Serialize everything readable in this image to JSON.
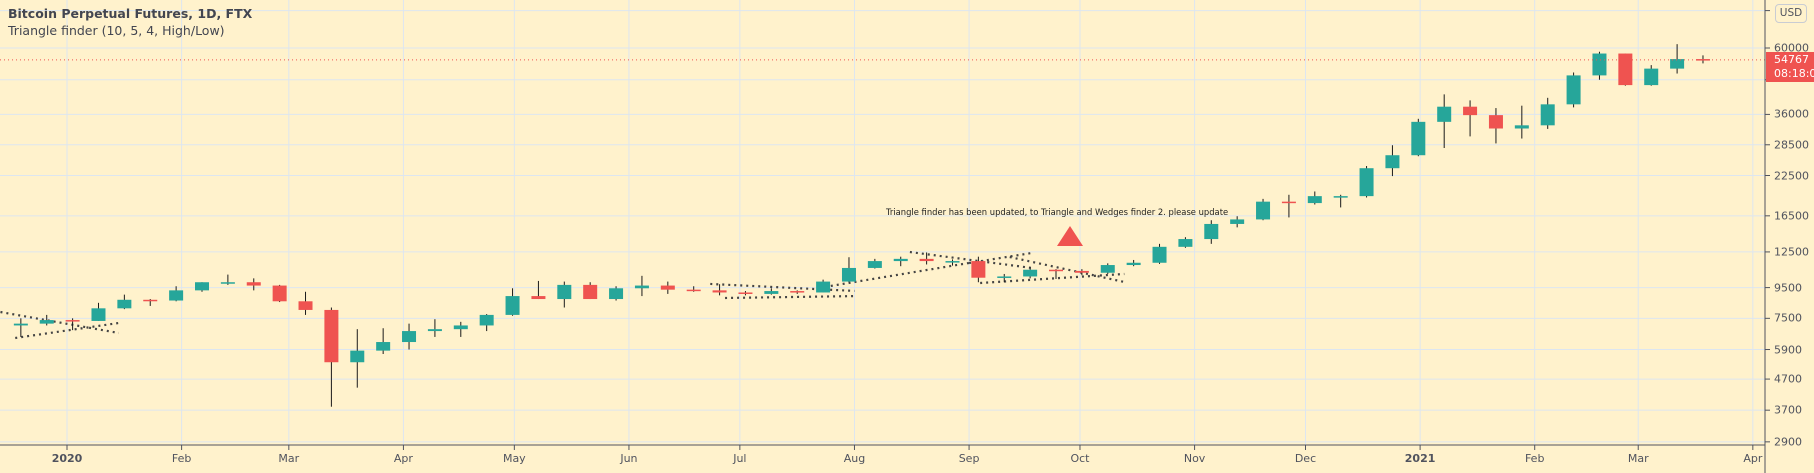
{
  "header": {
    "symbol_title": "Bitcoin Perpetual Futures, 1D, FTX",
    "indicator_title": "Triangle finder (10, 5, 4, High/Low)"
  },
  "currency_button": "USD",
  "last_price": {
    "value": "54767",
    "countdown": "08:18:05",
    "color": "#ef5350"
  },
  "annotation": {
    "text": "Triangle finder has been updated, to Triangle and Wedges finder 2. please update",
    "marker": "up-triangle",
    "marker_color": "#ef5350"
  },
  "colors": {
    "background": "#fff2cc",
    "up": "#26a69a",
    "down": "#ef5350",
    "grid": "#dde6f0",
    "pattern_line": "#444444"
  },
  "chart_data": {
    "type": "candlestick",
    "scale": "log",
    "grid": true,
    "ylim": [
      2900,
      80000
    ],
    "y_ticks": [
      "60000",
      "36000",
      "28500",
      "22500",
      "16500",
      "12500",
      "9500",
      "7500",
      "5900",
      "4700",
      "3700",
      "2900"
    ],
    "x_ticks": [
      {
        "label": "2020",
        "date": "2020-01-01",
        "bold": true
      },
      {
        "label": "Feb",
        "date": "2020-02-01"
      },
      {
        "label": "Mar",
        "date": "2020-03-01"
      },
      {
        "label": "Apr",
        "date": "2020-04-01"
      },
      {
        "label": "May",
        "date": "2020-05-01"
      },
      {
        "label": "Jun",
        "date": "2020-06-01"
      },
      {
        "label": "Jul",
        "date": "2020-07-01"
      },
      {
        "label": "Aug",
        "date": "2020-08-01"
      },
      {
        "label": "Sep",
        "date": "2020-09-01"
      },
      {
        "label": "Oct",
        "date": "2020-10-01"
      },
      {
        "label": "Nov",
        "date": "2020-11-01"
      },
      {
        "label": "Dec",
        "date": "2020-12-01"
      },
      {
        "label": "2021",
        "date": "2021-01-01",
        "bold": true
      },
      {
        "label": "Feb",
        "date": "2021-02-01"
      },
      {
        "label": "Mar",
        "date": "2021-03-01"
      },
      {
        "label": "Apr",
        "date": "2021-04-01"
      }
    ],
    "candles": [
      [
        "2019-12-16",
        7100,
        7500,
        6500,
        7200
      ],
      [
        "2019-12-23",
        7200,
        7700,
        7100,
        7400
      ],
      [
        "2019-12-30",
        7400,
        7500,
        6850,
        7350
      ],
      [
        "2020-01-06",
        7350,
        8450,
        7350,
        8100
      ],
      [
        "2020-01-13",
        8100,
        9000,
        8050,
        8650
      ],
      [
        "2020-01-20",
        8650,
        8700,
        8250,
        8600
      ],
      [
        "2020-01-27",
        8600,
        9600,
        8550,
        9300
      ],
      [
        "2020-02-03",
        9300,
        9900,
        9200,
        9900
      ],
      [
        "2020-02-10",
        9900,
        10500,
        9700,
        9900
      ],
      [
        "2020-02-17",
        9900,
        10200,
        9300,
        9650
      ],
      [
        "2020-02-24",
        9650,
        9700,
        8500,
        8550
      ],
      [
        "2020-03-02",
        8550,
        9200,
        7700,
        8000
      ],
      [
        "2020-03-09",
        8000,
        8150,
        3800,
        5350
      ],
      [
        "2020-03-16",
        5350,
        6900,
        4400,
        5850
      ],
      [
        "2020-03-23",
        5850,
        6950,
        5700,
        6250
      ],
      [
        "2020-03-30",
        6250,
        7200,
        5900,
        6800
      ],
      [
        "2020-04-06",
        6800,
        7450,
        6500,
        6900
      ],
      [
        "2020-04-13",
        6900,
        7300,
        6500,
        7100
      ],
      [
        "2020-04-20",
        7100,
        7750,
        6800,
        7700
      ],
      [
        "2020-04-27",
        7700,
        9450,
        7650,
        8900
      ],
      [
        "2020-05-04",
        8900,
        10000,
        8700,
        8700
      ],
      [
        "2020-05-11",
        8700,
        9950,
        8150,
        9700
      ],
      [
        "2020-05-18",
        9700,
        9900,
        8700,
        8700
      ],
      [
        "2020-05-25",
        8700,
        9600,
        8600,
        9450
      ],
      [
        "2020-06-01",
        9450,
        10400,
        8900,
        9650
      ],
      [
        "2020-06-08",
        9650,
        9950,
        9050,
        9350
      ],
      [
        "2020-06-15",
        9350,
        9600,
        9200,
        9300
      ],
      [
        "2020-06-22",
        9300,
        9750,
        8950,
        9150
      ],
      [
        "2020-06-29",
        9150,
        9250,
        8950,
        9050
      ],
      [
        "2020-07-06",
        9050,
        9450,
        9000,
        9250
      ],
      [
        "2020-07-13",
        9250,
        9300,
        9050,
        9150
      ],
      [
        "2020-07-20",
        9150,
        10100,
        9150,
        9950
      ],
      [
        "2020-07-27",
        9950,
        12000,
        9900,
        11050
      ],
      [
        "2020-08-03",
        11050,
        11850,
        11000,
        11650
      ],
      [
        "2020-08-10",
        11650,
        12050,
        11200,
        11850
      ],
      [
        "2020-08-17",
        11850,
        12450,
        11350,
        11650
      ],
      [
        "2020-08-24",
        11650,
        11800,
        11250,
        11650
      ],
      [
        "2020-08-31",
        11650,
        12050,
        9900,
        10250
      ],
      [
        "2020-09-07",
        10250,
        10550,
        9900,
        10350
      ],
      [
        "2020-09-14",
        10350,
        11100,
        10200,
        10900
      ],
      [
        "2020-09-21",
        10900,
        10950,
        10150,
        10800
      ],
      [
        "2020-09-28",
        10800,
        10950,
        10450,
        10650
      ],
      [
        "2020-10-05",
        10650,
        11450,
        10550,
        11300
      ],
      [
        "2020-10-12",
        11300,
        11750,
        11200,
        11500
      ],
      [
        "2020-10-19",
        11500,
        13300,
        11400,
        13000
      ],
      [
        "2020-10-26",
        13000,
        14000,
        12900,
        13800
      ],
      [
        "2020-11-02",
        13800,
        15950,
        13300,
        15500
      ],
      [
        "2020-11-09",
        15500,
        16450,
        15100,
        16050
      ],
      [
        "2020-11-16",
        16050,
        18800,
        15950,
        18400
      ],
      [
        "2020-11-23",
        18400,
        19400,
        16300,
        18200
      ],
      [
        "2020-11-30",
        18200,
        19900,
        18000,
        19200
      ],
      [
        "2020-12-07",
        19200,
        19400,
        17600,
        19200
      ],
      [
        "2020-12-14",
        19200,
        24200,
        19000,
        23800
      ],
      [
        "2020-12-21",
        23800,
        28400,
        22400,
        26300
      ],
      [
        "2020-12-28",
        26300,
        34800,
        26100,
        34000
      ],
      [
        "2021-01-04",
        34000,
        42000,
        27800,
        38200
      ],
      [
        "2021-01-11",
        38200,
        40100,
        30400,
        35800
      ],
      [
        "2021-01-18",
        35800,
        37800,
        28800,
        32300
      ],
      [
        "2021-01-25",
        32300,
        38500,
        29900,
        33100
      ],
      [
        "2021-02-01",
        33100,
        40900,
        32200,
        38900
      ],
      [
        "2021-02-08",
        38900,
        49700,
        38000,
        48600
      ],
      [
        "2021-02-15",
        48600,
        58300,
        47000,
        57500
      ],
      [
        "2021-02-22",
        57500,
        57500,
        44900,
        45100
      ],
      [
        "2021-03-01",
        45100,
        52600,
        44900,
        51200
      ],
      [
        "2021-03-08",
        51200,
        61800,
        49300,
        55100
      ],
      [
        "2021-03-15",
        55100,
        56700,
        53300,
        54767
      ]
    ],
    "candle_fields": [
      "week_start",
      "open",
      "high",
      "low",
      "close"
    ],
    "pattern_lines": [
      [
        [
          "2019-12-14",
          7873
        ],
        [
          "2020-01-15",
          6700
        ]
      ],
      [
        [
          "2019-12-18",
          6448
        ],
        [
          "2020-01-15",
          7236
        ]
      ],
      [
        [
          "2020-06-23",
          9770
        ],
        [
          "2020-08-01",
          9260
        ]
      ],
      [
        [
          "2020-06-27",
          8770
        ],
        [
          "2020-08-01",
          8900
        ]
      ],
      [
        [
          "2020-07-24",
          9550
        ],
        [
          "2020-09-01",
          11480
        ]
      ],
      [
        [
          "2020-08-16",
          12490
        ],
        [
          "2020-09-18",
          11050
        ]
      ],
      [
        [
          "2020-09-01",
          11480
        ],
        [
          "2020-09-18",
          12400
        ]
      ],
      [
        [
          "2020-09-12",
          12020
        ],
        [
          "2020-10-13",
          9920
        ]
      ],
      [
        [
          "2020-09-04",
          9840
        ],
        [
          "2020-10-13",
          10550
        ]
      ]
    ]
  }
}
